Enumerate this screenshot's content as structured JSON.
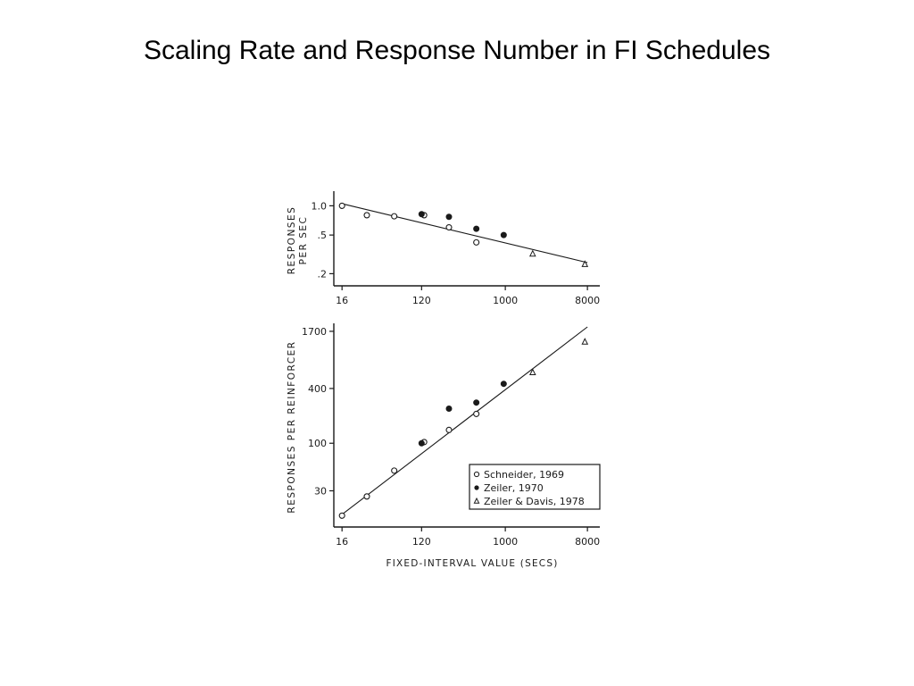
{
  "slide": {
    "title": "Scaling Rate and Response Number in FI Schedules"
  },
  "colors": {
    "ink": "#1a1a1a",
    "background": "#ffffff"
  },
  "chart_data": [
    {
      "id": "rate",
      "type": "scatter",
      "x_scale": "log",
      "y_scale": "log",
      "ylabel_lines": [
        "RESPONSES",
        "PER SEC"
      ],
      "xlabel": "",
      "xlim": [
        13,
        10000
      ],
      "ylim": [
        0.15,
        1.3
      ],
      "x_ticks": [
        16,
        120,
        1000,
        8000
      ],
      "x_tick_labels": [
        "16",
        "120",
        "1000",
        "8000"
      ],
      "y_ticks": [
        1.0,
        0.5,
        0.2
      ],
      "y_tick_labels": [
        "1.0",
        ".5",
        ".2"
      ],
      "fit_line": {
        "x": [
          16,
          8000
        ],
        "y": [
          1.05,
          0.26
        ]
      },
      "series": [
        {
          "name": "Schneider, 1969",
          "marker": "open-circle",
          "points": [
            [
              16,
              1.0
            ],
            [
              30,
              0.8
            ],
            [
              60,
              0.78
            ],
            [
              128,
              0.8
            ],
            [
              240,
              0.6
            ],
            [
              480,
              0.42
            ]
          ]
        },
        {
          "name": "Zeiler, 1970",
          "marker": "filled-circle",
          "points": [
            [
              120,
              0.82
            ],
            [
              240,
              0.77
            ],
            [
              480,
              0.58
            ],
            [
              960,
              0.5
            ]
          ]
        },
        {
          "name": "Zeiler & Davis, 1978",
          "marker": "open-triangle",
          "points": [
            [
              2000,
              0.32
            ],
            [
              7500,
              0.25
            ]
          ]
        }
      ]
    },
    {
      "id": "number",
      "type": "scatter",
      "x_scale": "log",
      "y_scale": "log",
      "ylabel_lines": [
        "RESPONSES PER REINFORCER"
      ],
      "xlabel": "FIXED-INTERVAL VALUE (SECS)",
      "xlim": [
        13,
        10000
      ],
      "ylim": [
        12,
        1900
      ],
      "x_ticks": [
        16,
        120,
        1000,
        8000
      ],
      "x_tick_labels": [
        "16",
        "120",
        "1000",
        "8000"
      ],
      "y_ticks": [
        1700,
        400,
        100,
        30
      ],
      "y_tick_labels": [
        "1700",
        "400",
        "100",
        "30"
      ],
      "fit_line": {
        "x": [
          16,
          8000
        ],
        "y": [
          16.5,
          1900
        ]
      },
      "series": [
        {
          "name": "Schneider, 1969",
          "marker": "open-circle",
          "points": [
            [
              16,
              16
            ],
            [
              30,
              26
            ],
            [
              60,
              50
            ],
            [
              128,
              103
            ],
            [
              240,
              140
            ],
            [
              480,
              210
            ]
          ]
        },
        {
          "name": "Zeiler, 1970",
          "marker": "filled-circle",
          "points": [
            [
              120,
              100
            ],
            [
              240,
              240
            ],
            [
              480,
              280
            ],
            [
              960,
              450
            ]
          ]
        },
        {
          "name": "Zeiler & Davis, 1978",
          "marker": "open-triangle",
          "points": [
            [
              2000,
              600
            ],
            [
              7500,
              1300
            ]
          ]
        }
      ]
    }
  ],
  "legend": {
    "position": "bottom-right of lower panel",
    "entries": [
      {
        "marker": "open-circle",
        "label": "Schneider, 1969"
      },
      {
        "marker": "filled-circle",
        "label": "Zeiler, 1970"
      },
      {
        "marker": "open-triangle",
        "label": "Zeiler & Davis, 1978"
      }
    ]
  }
}
